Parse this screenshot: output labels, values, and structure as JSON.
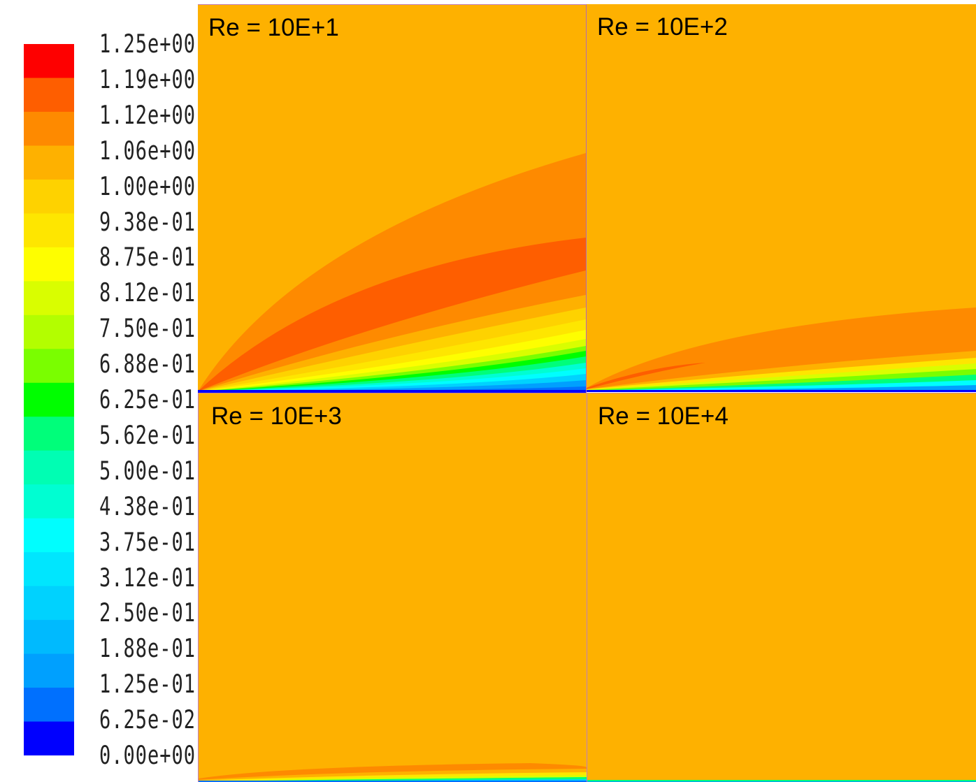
{
  "chart_data": {
    "type": "heatmap",
    "title": "",
    "colorbar": {
      "min": 0.0,
      "max": 1.25,
      "levels": 21,
      "tick_labels": [
        "1.25e+00",
        "1.19e+00",
        "1.12e+00",
        "1.06e+00",
        "1.00e+00",
        "9.38e-01",
        "8.75e-01",
        "8.12e-01",
        "7.50e-01",
        "6.88e-01",
        "6.25e-01",
        "5.62e-01",
        "5.00e-01",
        "4.38e-01",
        "3.75e-01",
        "3.12e-01",
        "2.50e-01",
        "1.88e-01",
        "1.25e-01",
        "6.25e-02",
        "0.00e+00"
      ],
      "colors": [
        "#fe0000",
        "#fe5e00",
        "#fe8a00",
        "#feb100",
        "#fed200",
        "#fee600",
        "#fefe00",
        "#d9fe00",
        "#b3fe00",
        "#7afe00",
        "#00fe00",
        "#00fe7a",
        "#00feb3",
        "#00fed2",
        "#00fefe",
        "#00e6fe",
        "#00d2fe",
        "#00bafe",
        "#00a0fe",
        "#0070fe",
        "#0000fe"
      ]
    },
    "panels": [
      {
        "label": "Re = 10E+1",
        "reynolds": 10
      },
      {
        "label": "Re = 10E+2",
        "reynolds": 100
      },
      {
        "label": "Re = 10E+3",
        "reynolds": 1000
      },
      {
        "label": "Re = 10E+4",
        "reynolds": 10000
      }
    ]
  }
}
